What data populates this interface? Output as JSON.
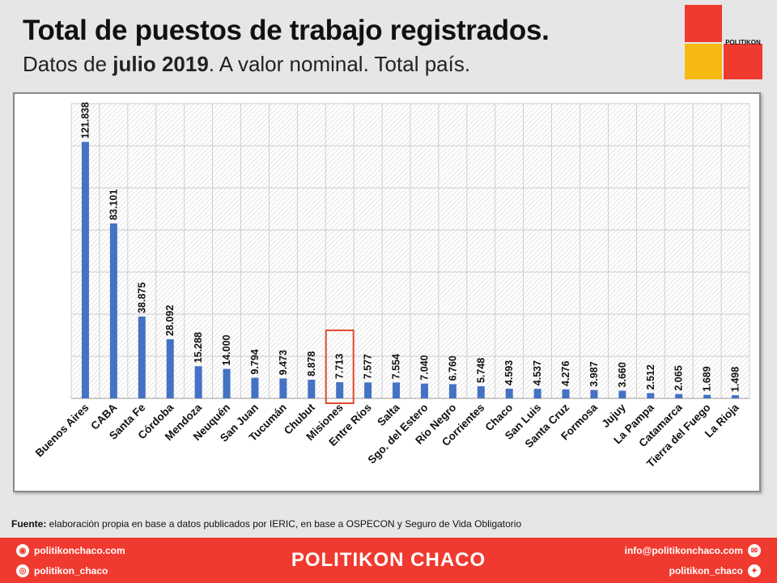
{
  "header": {
    "title": "Total de puestos de trabajo registrados.",
    "subtitle_prefix": "Datos de ",
    "subtitle_bold": "julio 2019",
    "subtitle_suffix": ". A valor nominal. Total país."
  },
  "logo": {
    "text": "POLITIKON"
  },
  "chart_data": {
    "type": "bar",
    "title": "",
    "xlabel": "",
    "ylabel": "",
    "ylim": [
      0,
      140000
    ],
    "grid": true,
    "color": "#4472c4",
    "highlight_category": "Misiones",
    "highlight_color": "#e0492f",
    "categories": [
      "Buenos Aires",
      "CABA",
      "Santa Fe",
      "Córdoba",
      "Mendoza",
      "Neuquén",
      "San Juan",
      "Tucumán",
      "Chubut",
      "Misiones",
      "Entre Ríos",
      "Salta",
      "Sgo. del Estero",
      "Río Negro",
      "Corrientes",
      "Chaco",
      "San Luis",
      "Santa Cruz",
      "Formosa",
      "Jujuy",
      "La Pampa",
      "Catamarca",
      "Tierra del Fuego",
      "La Rioja"
    ],
    "values": [
      121838,
      83101,
      38875,
      28092,
      15288,
      14000,
      9794,
      9473,
      8878,
      7713,
      7577,
      7554,
      7040,
      6760,
      5748,
      4593,
      4537,
      4276,
      3987,
      3660,
      2512,
      2065,
      1689,
      1498
    ],
    "labels": [
      "121.838",
      "83.101",
      "38.875",
      "28.092",
      "15.288",
      "14.000",
      "9.794",
      "9.473",
      "8.878",
      "7.713",
      "7.577",
      "7.554",
      "7.040",
      "6.760",
      "5.748",
      "4.593",
      "4.537",
      "4.276",
      "3.987",
      "3.660",
      "2.512",
      "2.065",
      "1.689",
      "1.498"
    ]
  },
  "source": {
    "label": "Fuente:",
    "text": " elaboración propia en base a datos publicados por IERIC, en base a OSPECON y Seguro de Vida Obligatorio"
  },
  "footer": {
    "brand": "POLITIKON CHACO",
    "web": "politikonchaco.com",
    "instagram": "politikon_chaco",
    "email": "info@politikonchaco.com",
    "twitter": "politikon_chaco"
  }
}
